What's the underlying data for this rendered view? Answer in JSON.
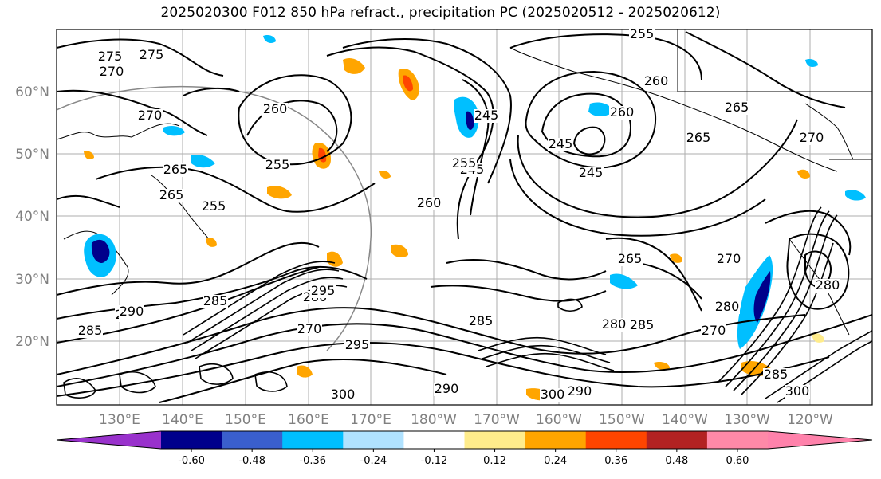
{
  "title": "2025020300 F012 850 hPa refract., precipitation PC (2025020512 - 2025020612)",
  "map": {
    "lat_labels": [
      "60°N",
      "50°N",
      "40°N",
      "30°N",
      "20°N"
    ],
    "lon_labels": [
      "130°E",
      "140°E",
      "150°E",
      "160°E",
      "170°E",
      "180°W",
      "170°W",
      "160°W",
      "150°W",
      "140°W",
      "130°W",
      "120°W"
    ],
    "contour_labels": [
      "275",
      "270",
      "275",
      "265",
      "255",
      "260",
      "255",
      "265",
      "270",
      "260",
      "245",
      "245",
      "245",
      "245",
      "255",
      "260",
      "270",
      "265",
      "265",
      "260",
      "255",
      "265",
      "275",
      "285",
      "290",
      "285",
      "280",
      "270",
      "280",
      "285",
      "295",
      "295",
      "285",
      "280",
      "270",
      "285",
      "280",
      "270",
      "290",
      "300",
      "290",
      "300",
      "300"
    ]
  },
  "colorbar": {
    "tick_labels": [
      "-0.60",
      "-0.48",
      "-0.36",
      "-0.24",
      "-0.12",
      "0.12",
      "0.24",
      "0.36",
      "0.48",
      "0.60"
    ],
    "colors": [
      "#9932cc",
      "#00008b",
      "#3a5fcd",
      "#00bfff",
      "#b0e2ff",
      "#ffffff",
      "#ffec8b",
      "#ffa500",
      "#ff4500",
      "#b22222",
      "#ff89a8",
      "#ff82ab"
    ]
  }
}
